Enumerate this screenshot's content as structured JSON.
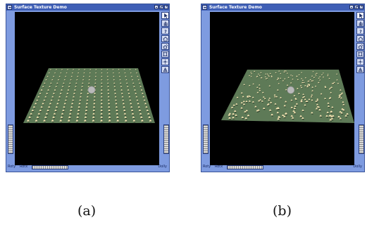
{
  "windows": [
    {
      "title": "Surface Texture Demo",
      "labels": {
        "rot_y": "Roty",
        "rot_x": "Rotx",
        "dolly": "Dolly"
      },
      "scene": {
        "ground_color": "#5e7a57",
        "bump_color": "#f4e3b2",
        "sphere_color": "#b9b9b9",
        "layout": "regular-grid"
      }
    },
    {
      "title": "Surface Texture Demo",
      "labels": {
        "rot_y": "Roty",
        "rot_x": "Rotx",
        "dolly": "Dolly"
      },
      "scene": {
        "ground_color": "#5e7a57",
        "bump_color": "#f4e3b2",
        "sphere_color": "#b9b9b9",
        "layout": "random"
      }
    }
  ],
  "toolbar_icons": [
    "pointer-icon",
    "hand-icon",
    "help-icon",
    "home-icon",
    "set-home-icon",
    "view-all-icon",
    "seek-icon",
    "perspective-icon"
  ],
  "captions": {
    "a": "(a)",
    "b": "(b)"
  },
  "colors": {
    "window_frame": "#7e9be0",
    "titlebar": "#3f5fb6",
    "viewport": "#000000"
  }
}
